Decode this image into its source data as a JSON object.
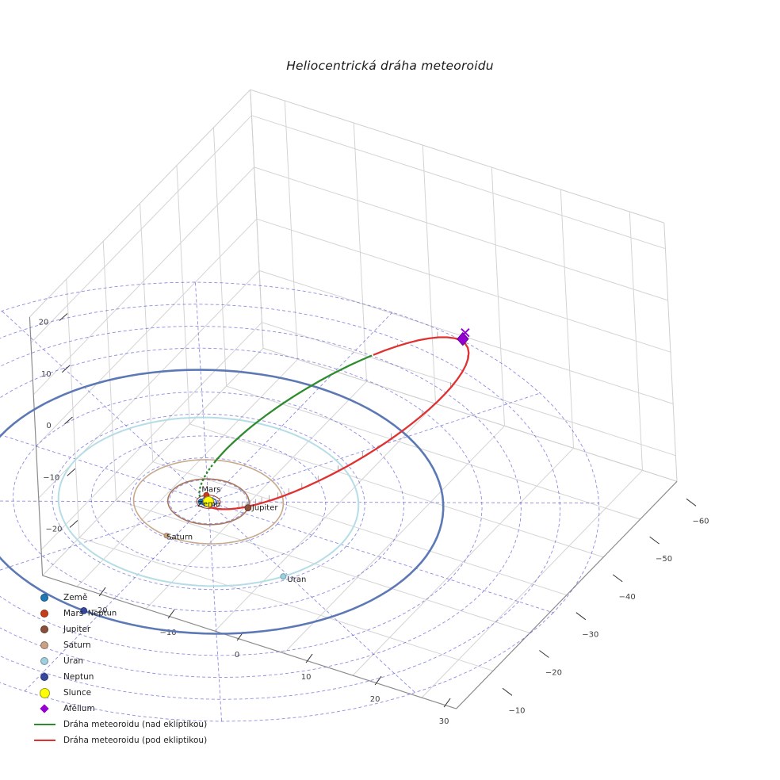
{
  "chart_data": {
    "type": "scatter",
    "projection": "3d",
    "title": "Heliocentrická dráha meteoroidu",
    "axis_ticks": {
      "x": [
        -20,
        -10,
        0,
        10,
        20,
        30
      ],
      "y": [
        -10,
        -20,
        -30,
        -40,
        -50,
        -60
      ],
      "z": [
        20,
        10,
        0,
        -10,
        -20
      ]
    },
    "axis_ranges": {
      "x": [
        -25,
        35
      ],
      "y": [
        -60,
        0
      ],
      "z": [
        -25,
        25
      ]
    },
    "ecliptic_grid": {
      "radii_au": [
        5,
        10,
        15,
        20,
        25,
        30,
        35,
        40,
        45,
        50
      ],
      "radial_step_deg": 30,
      "color": "#4747cf"
    },
    "planets": [
      {
        "key": "zeme",
        "label": "Země",
        "r_au": 1.0,
        "angle_deg": 150,
        "color": "#1f77b4",
        "edge": "#14537e",
        "orbit_color": "#2e4d9e",
        "orbit_width": 1.2,
        "size": 3.2
      },
      {
        "key": "mars",
        "label": "Mars",
        "r_au": 1.52,
        "angle_deg": 232,
        "color": "#c63d1e",
        "edge": "#8d2a15",
        "orbit_color": "#a23a24",
        "orbit_width": 1.0,
        "size": 3.5
      },
      {
        "key": "jupiter",
        "label": "Jupiter",
        "r_au": 5.2,
        "angle_deg": 345,
        "color": "#8a4f3a",
        "edge": "#5e352a",
        "orbit_color": "#a9765a",
        "orbit_width": 1.6,
        "size": 4.0
      },
      {
        "key": "saturn",
        "label": "Saturn",
        "r_au": 9.58,
        "angle_deg": 96,
        "color": "#c9a183",
        "edge": "#96785f",
        "orbit_color": "#c7a98b",
        "orbit_width": 1.6,
        "size": 3.2
      },
      {
        "key": "uran",
        "label": "Uran",
        "r_au": 19.2,
        "angle_deg": 32,
        "color": "#9fcfdd",
        "edge": "#5f93a6",
        "orbit_color": "#b6dde6",
        "orbit_width": 2.0,
        "size": 3.5
      },
      {
        "key": "neptun",
        "label": "Neptun",
        "r_au": 30.05,
        "angle_deg": 94,
        "color": "#35479e",
        "edge": "#222f6b",
        "orbit_color": "#5c78b5",
        "orbit_width": 2.6,
        "size": 4.0
      }
    ],
    "sun": {
      "key": "slunce",
      "label": "Slunce",
      "color": "#ffff00",
      "edge": "#9a9a22"
    },
    "meteoroid_orbit": {
      "a_au": 26.4,
      "e": 0.97,
      "inclination_deg": 20,
      "node_azimuth_deg": 93.5,
      "arg_perihelion_deg": 7.7,
      "aphelion_au": 52,
      "above_ecliptic": {
        "label": "Dráha meteoroidu (nad ekliptikou)",
        "color": "#2e8b2e"
      },
      "below_ecliptic": {
        "label": "Dráha meteoroidu (pod ekliptikou)",
        "color": "#e03030"
      }
    },
    "aphelion": {
      "key": "afelium",
      "label": "Afélium",
      "color": "#9400d3",
      "edge": "#66008f"
    },
    "legend": [
      {
        "key": "zeme",
        "icon": "dot",
        "color": "#1f77b4",
        "label": "Země"
      },
      {
        "key": "mars",
        "icon": "dot",
        "color": "#c63d1e",
        "label": "Mars"
      },
      {
        "key": "jupiter",
        "icon": "dot",
        "color": "#8a4f3a",
        "label": "Jupiter"
      },
      {
        "key": "saturn",
        "icon": "dot",
        "color": "#c9a183",
        "label": "Saturn"
      },
      {
        "key": "uran",
        "icon": "dot",
        "color": "#9fcfdd",
        "label": "Uran"
      },
      {
        "key": "neptun",
        "icon": "dot",
        "color": "#35479e",
        "label": "Neptun"
      },
      {
        "key": "slunce",
        "icon": "circle",
        "color": "#ffff00",
        "edge": "#9a9a22",
        "label": "Slunce"
      },
      {
        "key": "afelium",
        "icon": "diamond",
        "color": "#9400d3",
        "label": "Afélium"
      },
      {
        "key": "draha-nad",
        "icon": "line",
        "color": "#2e8b2e",
        "label": "Dráha meteoroidu (nad ekliptikou)"
      },
      {
        "key": "draha-pod",
        "icon": "line",
        "color": "#e03030",
        "label": "Dráha meteoroidu (pod ekliptikou)"
      }
    ]
  }
}
